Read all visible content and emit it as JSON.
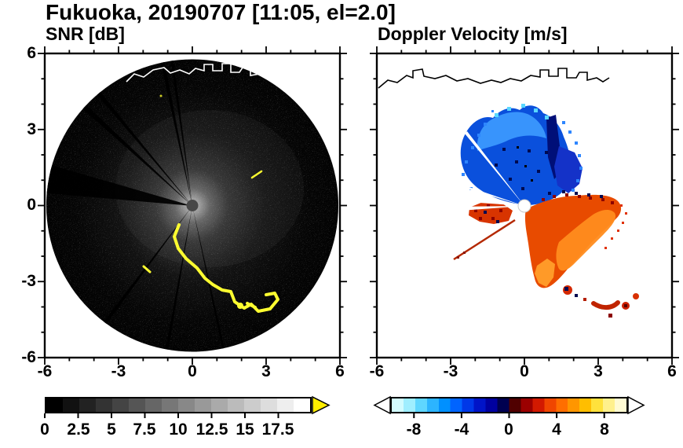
{
  "title": "Fukuoka, 20190707 [11:05, el=2.0]",
  "station": "Fukuoka",
  "date": "20190707",
  "time": "11:05",
  "elevation": "2.0",
  "panels": {
    "snr": {
      "label": "SNR [dB]",
      "y_tick_labels": [
        "6",
        "3",
        "0",
        "-3",
        "-6"
      ],
      "x_tick_labels": [
        "-6",
        "-3",
        "0",
        "3",
        "6"
      ],
      "colorbar": {
        "tick_labels": [
          "0",
          "2.5",
          "5",
          "7.5",
          "10",
          "12.5",
          "15",
          "17.5"
        ],
        "colors": [
          "#000000",
          "#111111",
          "#222222",
          "#333333",
          "#444444",
          "#555555",
          "#666666",
          "#777777",
          "#888888",
          "#999999",
          "#aaaaaa",
          "#bbbbbb",
          "#cccccc",
          "#dddddd",
          "#eeeeee",
          "#ffffff"
        ],
        "over_color": "#ffee00"
      }
    },
    "velocity": {
      "label": "Doppler Velocity [m/s]",
      "x_tick_labels": [
        "-6",
        "-3",
        "0",
        "3",
        "6"
      ],
      "colorbar": {
        "tick_labels": [
          "-8",
          "-4",
          "0",
          "4",
          "8"
        ],
        "colors": [
          "#d2fbff",
          "#9feeff",
          "#5fd6ff",
          "#2cb4ff",
          "#0090ff",
          "#0064ff",
          "#0038e8",
          "#0014c8",
          "#0000a0",
          "#000050",
          "#500000",
          "#9b0000",
          "#d21900",
          "#f04600",
          "#ff6e00",
          "#ff9600",
          "#ffbe00",
          "#ffe13c",
          "#fff08c",
          "#fffad2"
        ],
        "under_color": "#ffffff",
        "over_color": "#ffffff"
      }
    }
  },
  "chart_data": [
    {
      "type": "heatmap",
      "title": "SNR [dB]",
      "xlim": [
        -6,
        6
      ],
      "ylim": [
        -6,
        6
      ],
      "x_ticks": [
        -6,
        -3,
        0,
        3,
        6
      ],
      "y_ticks": [
        -6,
        -3,
        0,
        3,
        6
      ],
      "minor_tick_step": 1,
      "colorbar": {
        "range": [
          0,
          20
        ],
        "tick_values": [
          0,
          2.5,
          5,
          7.5,
          10,
          12.5,
          15,
          17.5
        ],
        "colormap": "grayscale, 0 dB black to white",
        "over_range_color": "yellow"
      },
      "content": "Full 360-degree radar PPI disk of radius ~6 units centered at (0,0); bright diffuse SNR halo near the radar center fading to dark noise at the edge; small dark-gray blind dot at the center; black wedge-shaped beam-blockage sectors toward the west, northwest, north and south; bright yellow over-range clutter arc curving from just southwest of the center toward the southeast edge; white coastline trace along the northern part of the disk."
    },
    {
      "type": "heatmap",
      "title": "Doppler Velocity [m/s]",
      "xlim": [
        -6,
        6
      ],
      "ylim": [
        -6,
        6
      ],
      "x_ticks": [
        -6,
        -3,
        0,
        3,
        6
      ],
      "y_ticks": [
        -6,
        -3,
        0,
        3,
        6
      ],
      "minor_tick_step": 1,
      "colorbar": {
        "range": [
          -10,
          10
        ],
        "tick_values": [
          -8,
          -4,
          0,
          4,
          8
        ],
        "colormap": "pale cyan to blue to dark navy (negative, toward radar) | dark red to red to orange to pale yellow (positive, away from radar)",
        "under_range_color": "white",
        "over_range_color": "white"
      },
      "content": "Velocity shown only where echoes exist: blue negative-velocity region (about -2 to -8 m/s) north of the radar with dark navy and black speckles; red-orange positive-velocity region (about +2 to +8 m/s) east through south-southeast with dark red speckles along the zero line; thin white blocked-beam wedges toward the west; scattered red and dark specks about 3 units south-southeast; black coastline drawn across the north; white dot at the radar position."
    }
  ]
}
